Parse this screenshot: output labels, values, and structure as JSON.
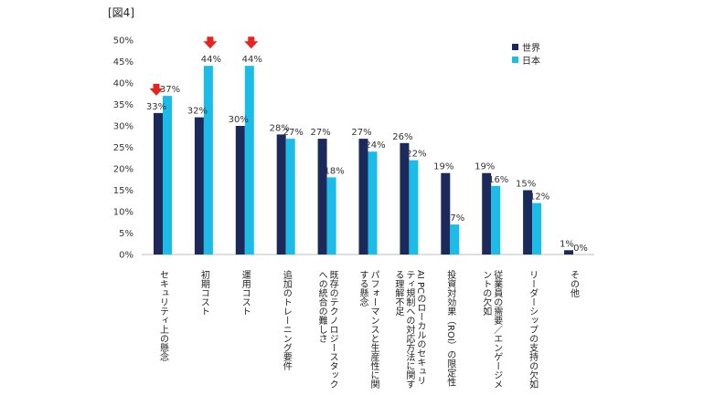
{
  "figure_label": "[図4]",
  "chart_data": {
    "type": "bar",
    "ylim": [
      0,
      50
    ],
    "yticks": [
      "0%",
      "5%",
      "10%",
      "15%",
      "20%",
      "25%",
      "30%",
      "35%",
      "40%",
      "45%",
      "50%"
    ],
    "grid": false,
    "legend_position": "top-right",
    "categories": [
      [
        "セキュリティ上の懸念"
      ],
      [
        "初期コスト"
      ],
      [
        "運用コスト"
      ],
      [
        "追加のトレーニング要件"
      ],
      [
        "既存のテクノロジースタック",
        "への統合の難しさ"
      ],
      [
        "パフォーマンスと生産性に関",
        "する懸念"
      ],
      [
        "AI PCのローカルのセキュリ",
        "ティ規制への対応方法に関す",
        "る理解不足"
      ],
      [
        "投資対効果（ROI）の限定性"
      ],
      [
        "従業員の需要／エンゲージメ",
        "ントの欠如"
      ],
      [
        "リーダーシップの支持の欠如"
      ],
      [
        "その他"
      ]
    ],
    "series": [
      {
        "name": "世界",
        "color": "#1b2a5a",
        "values": [
          33,
          32,
          30,
          28,
          27,
          27,
          26,
          19,
          19,
          15,
          1
        ],
        "labels": [
          "33%",
          "32%",
          "30%",
          "28%",
          "27%",
          "27%",
          "26%",
          "19%",
          "19%",
          "15%",
          "1%"
        ]
      },
      {
        "name": "日本",
        "color": "#1bbde8",
        "values": [
          37,
          44,
          44,
          27,
          18,
          24,
          22,
          7,
          16,
          12,
          0
        ],
        "labels": [
          "37%",
          "44%",
          "44%",
          "27%",
          "18%",
          "24%",
          "22%",
          "7%",
          "16%",
          "12%",
          "0%"
        ]
      }
    ],
    "highlight_arrows": [
      {
        "category_index": 0,
        "series_index": 0
      },
      {
        "category_index": 1,
        "series_index": 1
      },
      {
        "category_index": 2,
        "series_index": 1
      }
    ],
    "arrow_color": "#e8231f"
  }
}
